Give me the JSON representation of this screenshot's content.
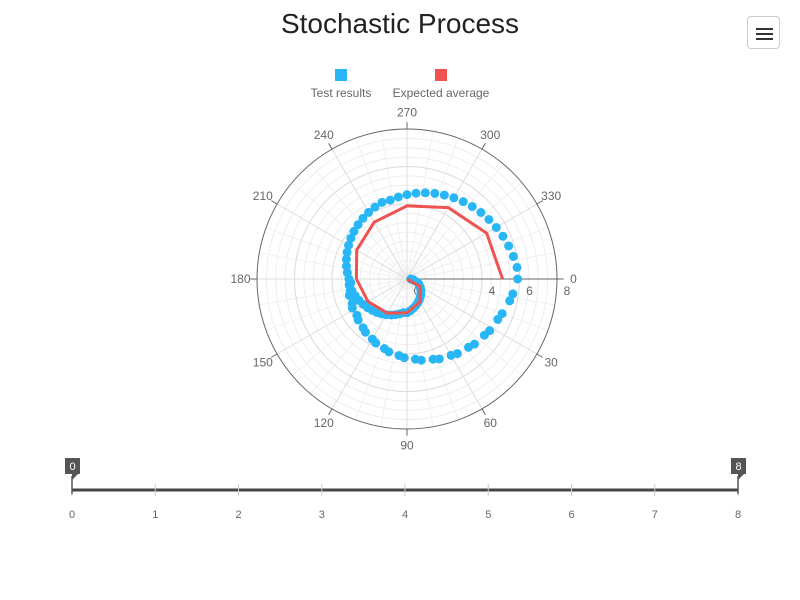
{
  "title": "Stochastic Process",
  "menu": {
    "icon": "hamburger-icon"
  },
  "legend": [
    {
      "label": "Test results",
      "color": "#29b6f6"
    },
    {
      "label": "Expected average",
      "color": "#ef5350"
    }
  ],
  "chart_data": {
    "type": "scatter",
    "coordinate_system": "polar",
    "title": "Stochastic Process",
    "angular_axis": {
      "unit": "degrees",
      "ticks": [
        0,
        30,
        60,
        90,
        120,
        150,
        180,
        210,
        240,
        270,
        300,
        330
      ],
      "direction": "clockwise",
      "zero_position": "right"
    },
    "radial_axis": {
      "range": [
        0,
        8
      ],
      "ticks": [
        0,
        4,
        6,
        8
      ]
    },
    "grid": true,
    "legend_position": "top-center",
    "series": [
      {
        "name": "Test results",
        "mode": "markers",
        "color": "#29b6f6",
        "points": [
          {
            "theta": 0,
            "r": 0.2
          },
          {
            "theta": 12,
            "r": 0.4
          },
          {
            "theta": 24,
            "r": 0.7
          },
          {
            "theta": 36,
            "r": 0.9
          },
          {
            "theta": 48,
            "r": 1.1
          },
          {
            "theta": 60,
            "r": 1.3
          },
          {
            "theta": 72,
            "r": 1.5
          },
          {
            "theta": 84,
            "r": 1.7
          },
          {
            "theta": 96,
            "r": 1.8
          },
          {
            "theta": 108,
            "r": 2.0
          },
          {
            "theta": 120,
            "r": 2.2
          },
          {
            "theta": 132,
            "r": 2.4
          },
          {
            "theta": 144,
            "r": 2.6
          },
          {
            "theta": 156,
            "r": 2.8
          },
          {
            "theta": 168,
            "r": 3.0
          },
          {
            "theta": 180,
            "r": 3.1
          },
          {
            "theta": 192,
            "r": 3.3
          },
          {
            "theta": 204,
            "r": 3.5
          },
          {
            "theta": 216,
            "r": 3.7
          },
          {
            "theta": 228,
            "r": 3.9
          },
          {
            "theta": 240,
            "r": 4.1
          },
          {
            "theta": 252,
            "r": 4.3
          },
          {
            "theta": 264,
            "r": 4.4
          },
          {
            "theta": 276,
            "r": 4.6
          },
          {
            "theta": 288,
            "r": 4.8
          },
          {
            "theta": 300,
            "r": 5.0
          },
          {
            "theta": 312,
            "r": 5.2
          },
          {
            "theta": 324,
            "r": 5.4
          },
          {
            "theta": 336,
            "r": 5.6
          },
          {
            "theta": 348,
            "r": 5.8
          },
          {
            "theta": 0,
            "r": 5.9
          },
          {
            "theta": 12,
            "r": 5.6
          },
          {
            "theta": 24,
            "r": 5.3
          },
          {
            "theta": 36,
            "r": 5.1
          },
          {
            "theta": 48,
            "r": 4.9
          },
          {
            "theta": 60,
            "r": 4.7
          },
          {
            "theta": 72,
            "r": 4.5
          },
          {
            "theta": 84,
            "r": 4.3
          },
          {
            "theta": 96,
            "r": 4.1
          },
          {
            "theta": 108,
            "r": 3.9
          },
          {
            "theta": 120,
            "r": 3.7
          },
          {
            "theta": 132,
            "r": 3.5
          },
          {
            "theta": 144,
            "r": 3.3
          },
          {
            "theta": 156,
            "r": 3.2
          },
          {
            "theta": 168,
            "r": 3.1
          },
          {
            "theta": 5,
            "r": 0.3
          },
          {
            "theta": 18,
            "r": 0.6
          },
          {
            "theta": 30,
            "r": 0.8
          },
          {
            "theta": 42,
            "r": 1.0
          },
          {
            "theta": 54,
            "r": 1.2
          },
          {
            "theta": 66,
            "r": 1.4
          },
          {
            "theta": 78,
            "r": 1.6
          },
          {
            "theta": 90,
            "r": 1.8
          },
          {
            "theta": 102,
            "r": 1.9
          },
          {
            "theta": 114,
            "r": 2.1
          },
          {
            "theta": 126,
            "r": 2.3
          },
          {
            "theta": 138,
            "r": 2.5
          },
          {
            "theta": 150,
            "r": 2.7
          },
          {
            "theta": 162,
            "r": 2.9
          },
          {
            "theta": 174,
            "r": 3.1
          },
          {
            "theta": 186,
            "r": 3.2
          },
          {
            "theta": 198,
            "r": 3.4
          },
          {
            "theta": 210,
            "r": 3.6
          },
          {
            "theta": 222,
            "r": 3.8
          },
          {
            "theta": 234,
            "r": 4.0
          },
          {
            "theta": 246,
            "r": 4.2
          },
          {
            "theta": 258,
            "r": 4.3
          },
          {
            "theta": 270,
            "r": 4.5
          },
          {
            "theta": 282,
            "r": 4.7
          },
          {
            "theta": 294,
            "r": 4.9
          },
          {
            "theta": 306,
            "r": 5.1
          },
          {
            "theta": 318,
            "r": 5.3
          },
          {
            "theta": 330,
            "r": 5.5
          },
          {
            "theta": 342,
            "r": 5.7
          },
          {
            "theta": 354,
            "r": 5.9
          },
          {
            "theta": 8,
            "r": 5.7
          },
          {
            "theta": 20,
            "r": 5.4
          },
          {
            "theta": 32,
            "r": 5.2
          },
          {
            "theta": 44,
            "r": 5.0
          },
          {
            "theta": 56,
            "r": 4.8
          },
          {
            "theta": 68,
            "r": 4.6
          },
          {
            "theta": 80,
            "r": 4.4
          },
          {
            "theta": 92,
            "r": 4.2
          },
          {
            "theta": 104,
            "r": 4.0
          },
          {
            "theta": 116,
            "r": 3.8
          },
          {
            "theta": 128,
            "r": 3.6
          },
          {
            "theta": 140,
            "r": 3.4
          },
          {
            "theta": 152,
            "r": 3.3
          },
          {
            "theta": 164,
            "r": 3.2
          },
          {
            "theta": 176,
            "r": 3.0
          }
        ]
      },
      {
        "name": "Expected average",
        "mode": "lines",
        "color": "#ef5350",
        "points": [
          {
            "theta": 0,
            "r": 0.0
          },
          {
            "theta": 30,
            "r": 0.8
          },
          {
            "theta": 60,
            "r": 1.4
          },
          {
            "theta": 90,
            "r": 1.8
          },
          {
            "theta": 120,
            "r": 2.1
          },
          {
            "theta": 150,
            "r": 2.4
          },
          {
            "theta": 180,
            "r": 2.7
          },
          {
            "theta": 210,
            "r": 3.1
          },
          {
            "theta": 240,
            "r": 3.5
          },
          {
            "theta": 270,
            "r": 3.9
          },
          {
            "theta": 300,
            "r": 4.4
          },
          {
            "theta": 330,
            "r": 4.9
          },
          {
            "theta": 360,
            "r": 5.1
          }
        ]
      }
    ]
  },
  "slider": {
    "min": 0,
    "max": 8,
    "low": 0,
    "high": 8,
    "ticks": [
      0,
      1,
      2,
      3,
      4,
      5,
      6,
      7,
      8
    ],
    "low_label": "0",
    "high_label": "8"
  }
}
